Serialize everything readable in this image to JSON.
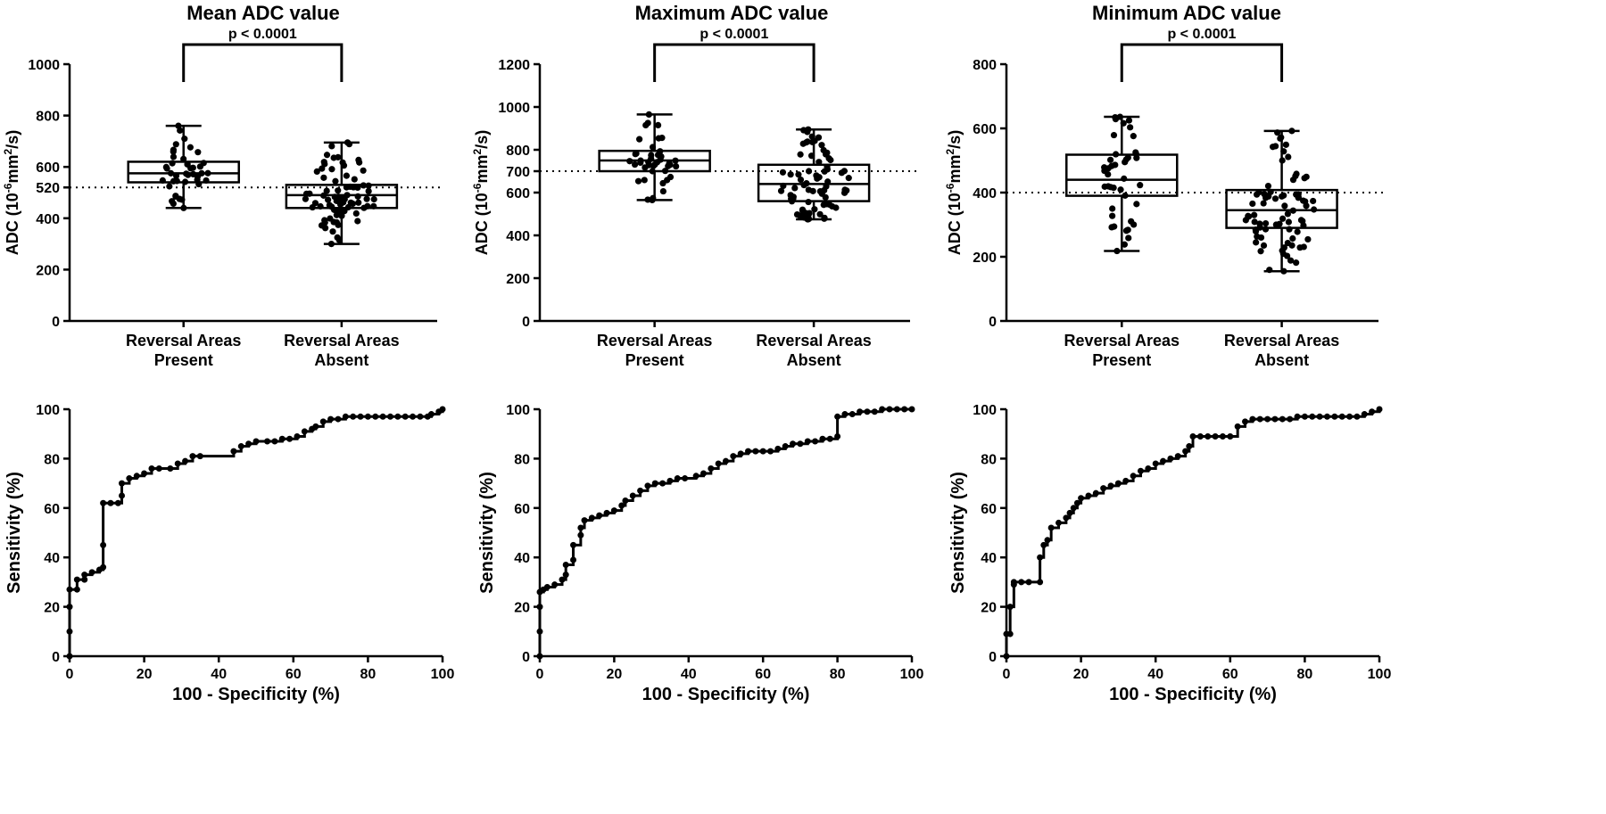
{
  "chart_data": [
    {
      "type": "box",
      "title": "Mean ADC value",
      "ylabel_main": "ADC (10",
      "ylabel_sup": "-6",
      "ylabel_mid": "mm",
      "ylabel_sup2": "2",
      "ylabel_end": "/s)",
      "ylim": [
        0,
        1000
      ],
      "yticks": [
        0,
        200,
        400,
        520,
        600,
        800,
        1000
      ],
      "yticklabels": [
        "0",
        "200",
        "400",
        "520",
        "600",
        "800",
        "1000"
      ],
      "threshold": 520,
      "categories": [
        [
          "Reversal Areas",
          "Present"
        ],
        [
          "Reversal Areas",
          "Absent"
        ]
      ],
      "boxes": [
        {
          "min": 440,
          "q1": 540,
          "median": 575,
          "q3": 620,
          "max": 760
        },
        {
          "min": 300,
          "q1": 440,
          "median": 490,
          "q3": 530,
          "max": 695
        }
      ],
      "significance": "p < 0.0001"
    },
    {
      "type": "box",
      "title": "Maximum ADC value",
      "ylabel_main": "ADC (10",
      "ylabel_sup": "-6",
      "ylabel_mid": "mm",
      "ylabel_sup2": "2",
      "ylabel_end": "/s)",
      "ylim": [
        0,
        1200
      ],
      "yticks": [
        0,
        200,
        400,
        600,
        700,
        800,
        1000,
        1200
      ],
      "yticklabels": [
        "0",
        "200",
        "400",
        "600",
        "700",
        "800",
        "1000",
        "1200"
      ],
      "threshold": 700,
      "categories": [
        [
          "Reversal Areas",
          "Present"
        ],
        [
          "Reversal Areas",
          "Absent"
        ]
      ],
      "boxes": [
        {
          "min": 565,
          "q1": 700,
          "median": 750,
          "q3": 795,
          "max": 965
        },
        {
          "min": 475,
          "q1": 560,
          "median": 640,
          "q3": 730,
          "max": 895
        }
      ],
      "significance": "p < 0.0001"
    },
    {
      "type": "box",
      "title": "Minimum ADC value",
      "ylabel_main": "ADC (10",
      "ylabel_sup": "-6",
      "ylabel_mid": "mm",
      "ylabel_sup2": "2",
      "ylabel_end": "/s)",
      "ylim": [
        0,
        800
      ],
      "yticks": [
        0,
        200,
        400,
        600,
        800
      ],
      "yticklabels": [
        "0",
        "200",
        "400",
        "600",
        "800"
      ],
      "threshold": 400,
      "categories": [
        [
          "Reversal Areas",
          "Present"
        ],
        [
          "Reversal Areas",
          "Absent"
        ]
      ],
      "boxes": [
        {
          "min": 218,
          "q1": 390,
          "median": 440,
          "q3": 518,
          "max": 636
        },
        {
          "min": 155,
          "q1": 290,
          "median": 345,
          "q3": 408,
          "max": 592
        }
      ],
      "significance": "p < 0.0001"
    },
    {
      "type": "line",
      "xlabel": "100 - Specificity (%)",
      "ylabel": "Sensitivity (%)",
      "xlim": [
        0,
        100
      ],
      "ylim": [
        0,
        100
      ],
      "ticks": [
        "0",
        "20",
        "40",
        "60",
        "80",
        "100"
      ],
      "x": [
        0,
        0,
        0,
        0,
        2,
        2,
        4,
        4,
        6,
        8,
        9,
        9,
        9,
        11,
        13,
        14,
        14,
        16,
        18,
        20,
        22,
        24,
        27,
        29,
        31,
        33,
        35,
        44,
        46,
        48,
        50,
        53,
        55,
        57,
        59,
        61,
        63,
        65,
        66,
        68,
        70,
        72,
        74,
        76,
        78,
        80,
        82,
        84,
        86,
        88,
        90,
        92,
        94,
        96,
        97,
        99,
        100
      ],
      "y": [
        0,
        10,
        20,
        27,
        27,
        31,
        31,
        33,
        34,
        35,
        36,
        45,
        62,
        62,
        62,
        65,
        70,
        72,
        73,
        74,
        76,
        76,
        76,
        78,
        79,
        81,
        81,
        83,
        85,
        86,
        87,
        87,
        87,
        88,
        88,
        89,
        91,
        92,
        93,
        95,
        96,
        96,
        97,
        97,
        97,
        97,
        97,
        97,
        97,
        97,
        97,
        97,
        97,
        97,
        98,
        99,
        100
      ]
    },
    {
      "type": "line",
      "xlabel": "100 - Specificity (%)",
      "ylabel": "Sensitivity (%)",
      "xlim": [
        0,
        100
      ],
      "ylim": [
        0,
        100
      ],
      "ticks": [
        "0",
        "20",
        "40",
        "60",
        "80",
        "100"
      ],
      "x": [
        0,
        0,
        0,
        0,
        1,
        2,
        4,
        6,
        7,
        7,
        9,
        9,
        11,
        11,
        12,
        14,
        16,
        18,
        20,
        22,
        23,
        25,
        27,
        29,
        31,
        33,
        35,
        37,
        39,
        42,
        44,
        46,
        48,
        50,
        52,
        54,
        56,
        58,
        60,
        62,
        64,
        66,
        68,
        70,
        72,
        74,
        76,
        78,
        80,
        80,
        82,
        84,
        86,
        88,
        90,
        92,
        94,
        96,
        98,
        100
      ],
      "y": [
        0,
        10,
        20,
        26,
        27,
        28,
        29,
        31,
        33,
        37,
        39,
        45,
        49,
        52,
        55,
        56,
        57,
        58,
        59,
        61,
        63,
        65,
        67,
        69,
        70,
        70,
        71,
        72,
        72,
        73,
        74,
        76,
        78,
        79,
        81,
        82,
        83,
        83,
        83,
        83,
        84,
        85,
        86,
        86,
        87,
        87,
        88,
        88,
        89,
        97,
        98,
        98,
        99,
        99,
        99,
        100,
        100,
        100,
        100,
        100
      ]
    },
    {
      "type": "line",
      "xlabel": "100 - Specificity (%)",
      "ylabel": "Sensitivity (%)",
      "xlim": [
        0,
        100
      ],
      "ylim": [
        0,
        100
      ],
      "ticks": [
        "0",
        "20",
        "40",
        "60",
        "80",
        "100"
      ],
      "x": [
        0,
        0,
        1,
        1,
        2,
        2,
        4,
        6,
        9,
        9,
        10,
        11,
        12,
        14,
        16,
        17,
        18,
        19,
        20,
        22,
        24,
        26,
        28,
        30,
        32,
        34,
        36,
        38,
        40,
        42,
        44,
        46,
        48,
        49,
        50,
        52,
        54,
        56,
        58,
        60,
        62,
        64,
        66,
        68,
        70,
        72,
        74,
        76,
        78,
        80,
        82,
        84,
        86,
        88,
        90,
        92,
        94,
        96,
        98,
        100
      ],
      "y": [
        0,
        9,
        9,
        20,
        29,
        30,
        30,
        30,
        30,
        40,
        45,
        47,
        52,
        54,
        56,
        58,
        60,
        62,
        64,
        65,
        66,
        68,
        69,
        70,
        71,
        73,
        75,
        76,
        78,
        79,
        80,
        81,
        83,
        85,
        89,
        89,
        89,
        89,
        89,
        89,
        93,
        95,
        96,
        96,
        96,
        96,
        96,
        96,
        97,
        97,
        97,
        97,
        97,
        97,
        97,
        97,
        97,
        98,
        99,
        100
      ]
    }
  ]
}
